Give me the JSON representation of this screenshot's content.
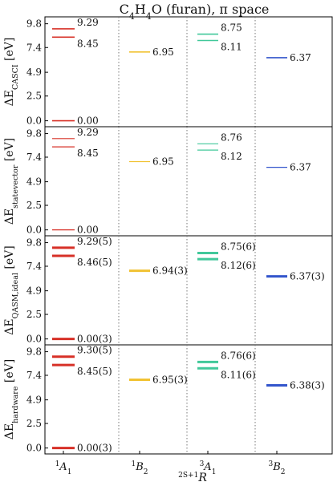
{
  "chart_data": {
    "type": "level-diagram",
    "title": "C4H4O (furan), π space",
    "title_parts": [
      "C",
      "4",
      "H",
      "4",
      "O (furan), π space"
    ],
    "xlabel": "2S+1R",
    "xlabel_parts": {
      "sup": "2S+1",
      "main": "R"
    },
    "categories": [
      {
        "sup": "1",
        "main": "A",
        "sub": "1"
      },
      {
        "sup": "1",
        "main": "B",
        "sub": "2"
      },
      {
        "sup": "3",
        "main": "A",
        "sub": "1"
      },
      {
        "sup": "3",
        "main": "B",
        "sub": "2"
      }
    ],
    "yticks": [
      0.0,
      2.5,
      4.9,
      7.4,
      9.8
    ],
    "ytick_labels": [
      "0.0",
      "2.5",
      "4.9",
      "7.4",
      "9.8"
    ],
    "ylim": [
      -0.6,
      10.5
    ],
    "colors": {
      "1A1": "#d73027",
      "1B2": "#f1c232",
      "3A1": "#41c89a",
      "3B2": "#3355cc"
    },
    "panels": [
      {
        "ylabel_main": "ΔE",
        "ylabel_sub": "CASCI",
        "ylabel_unit": "[eV]",
        "line_width": 1.6,
        "levels": [
          {
            "cat": 0,
            "values": [
              0.0,
              8.45,
              9.29
            ],
            "labels": [
              "0.00",
              "8.45",
              "9.29"
            ]
          },
          {
            "cat": 1,
            "values": [
              6.95
            ],
            "labels": [
              "6.95"
            ]
          },
          {
            "cat": 2,
            "values": [
              8.11,
              8.75
            ],
            "labels": [
              "8.11",
              "8.75"
            ]
          },
          {
            "cat": 3,
            "values": [
              6.37
            ],
            "labels": [
              "6.37"
            ]
          }
        ]
      },
      {
        "ylabel_main": "ΔE",
        "ylabel_sub": "statevector",
        "ylabel_unit": "[eV]",
        "line_width": 1.2,
        "levels": [
          {
            "cat": 0,
            "values": [
              0.0,
              8.45,
              9.29
            ],
            "labels": [
              "0.00",
              "8.45",
              "9.29"
            ]
          },
          {
            "cat": 1,
            "values": [
              6.95
            ],
            "labels": [
              "6.95"
            ]
          },
          {
            "cat": 2,
            "values": [
              8.12,
              8.76
            ],
            "labels": [
              "8.12",
              "8.76"
            ]
          },
          {
            "cat": 3,
            "values": [
              6.37
            ],
            "labels": [
              "6.37"
            ]
          }
        ]
      },
      {
        "ylabel_main": "ΔE",
        "ylabel_sub": "QASM,ideal",
        "ylabel_unit": "[eV]",
        "line_width": 3,
        "levels": [
          {
            "cat": 0,
            "values": [
              0.0,
              8.46,
              9.29
            ],
            "labels": [
              "0.00(3)",
              "8.46(5)",
              "9.29(5)"
            ]
          },
          {
            "cat": 1,
            "values": [
              6.94
            ],
            "labels": [
              "6.94(3)"
            ]
          },
          {
            "cat": 2,
            "values": [
              8.12,
              8.75
            ],
            "labels": [
              "8.12(6)",
              "8.75(6)"
            ]
          },
          {
            "cat": 3,
            "values": [
              6.37
            ],
            "labels": [
              "6.37(3)"
            ]
          }
        ]
      },
      {
        "ylabel_main": "ΔE",
        "ylabel_sub": "hardware",
        "ylabel_unit": "[eV]",
        "line_width": 3,
        "levels": [
          {
            "cat": 0,
            "values": [
              0.0,
              8.45,
              9.3
            ],
            "labels": [
              "0.00(3)",
              "8.45(5)",
              "9.30(5)"
            ]
          },
          {
            "cat": 1,
            "values": [
              6.95
            ],
            "labels": [
              "6.95(3)"
            ]
          },
          {
            "cat": 2,
            "values": [
              8.11,
              8.76
            ],
            "labels": [
              "8.11(6)",
              "8.76(6)"
            ]
          },
          {
            "cat": 3,
            "values": [
              6.38
            ],
            "labels": [
              "6.38(3)"
            ]
          }
        ]
      }
    ]
  }
}
